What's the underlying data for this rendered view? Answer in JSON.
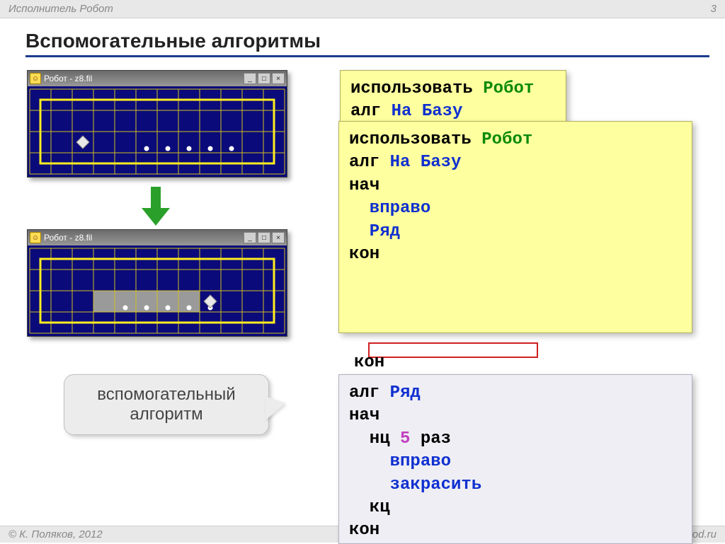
{
  "page_number": "3",
  "breadcrumb": "Исполнитель Робот",
  "slide_title": "Вспомогательные алгоритмы",
  "footer_left": "© К. Поляков, 2012",
  "footer_right": "http://kpolyakov.narod.ru",
  "robot_window": {
    "title": "Робот - z8.fil",
    "grid": {
      "cols": 12,
      "rows": 4,
      "cell": 30,
      "bg": "#0a0a7a",
      "line": "#d0c020",
      "border_line": "#ffee20"
    },
    "state_before": {
      "robot": {
        "col": 2,
        "row": 2
      },
      "painted": [],
      "dots": [
        {
          "c": 5,
          "r": 2
        },
        {
          "c": 6,
          "r": 2
        },
        {
          "c": 7,
          "r": 2
        },
        {
          "c": 8,
          "r": 2
        },
        {
          "c": 9,
          "r": 2
        }
      ]
    },
    "state_after": {
      "robot": {
        "col": 8,
        "row": 2
      },
      "painted": [
        {
          "c": 3,
          "r": 2
        },
        {
          "c": 4,
          "r": 2
        },
        {
          "c": 5,
          "r": 2
        },
        {
          "c": 6,
          "r": 2
        },
        {
          "c": 7,
          "r": 2
        }
      ],
      "dots": [
        {
          "c": 4,
          "r": 2
        },
        {
          "c": 5,
          "r": 2
        },
        {
          "c": 6,
          "r": 2
        },
        {
          "c": 7,
          "r": 2
        },
        {
          "c": 8,
          "r": 2
        }
      ]
    }
  },
  "arrow_color": "#2aa02a",
  "code_box1": {
    "lines": [
      [
        {
          "t": "использовать ",
          "c": "black"
        },
        {
          "t": "Робот",
          "c": "green"
        }
      ],
      [
        {
          "t": "алг ",
          "c": "black"
        },
        {
          "t": "На Базу",
          "c": "blue"
        }
      ]
    ]
  },
  "code_box2": {
    "lines": [
      [
        {
          "t": "использовать ",
          "c": "black"
        },
        {
          "t": "Робот",
          "c": "green"
        }
      ],
      [
        {
          "t": "алг ",
          "c": "black"
        },
        {
          "t": "На Базу",
          "c": "blue"
        }
      ],
      [
        {
          "t": "нач",
          "c": "black"
        }
      ],
      [
        {
          "t": "  вправо",
          "c": "blue"
        }
      ],
      [
        {
          "t": "  Ряд",
          "c": "blue"
        }
      ],
      [
        {
          "t": "кон",
          "c": "black"
        }
      ]
    ]
  },
  "kon_behind": "кон",
  "code_box3": {
    "lines": [
      [
        {
          "t": "алг ",
          "c": "black"
        },
        {
          "t": "Ряд",
          "c": "blue"
        }
      ],
      [
        {
          "t": "нач",
          "c": "black"
        }
      ],
      [
        {
          "t": "  нц ",
          "c": "black"
        },
        {
          "t": "5",
          "c": "num"
        },
        {
          "t": " раз",
          "c": "black"
        }
      ],
      [
        {
          "t": "    вправо",
          "c": "blue"
        }
      ],
      [
        {
          "t": "    закрасить",
          "c": "blue"
        }
      ],
      [
        {
          "t": "  кц",
          "c": "black"
        }
      ],
      [
        {
          "t": "кон",
          "c": "black"
        }
      ]
    ]
  },
  "callout_text": "вспомогательный алгоритм",
  "win_buttons": {
    "min": "_",
    "max": "□",
    "close": "×"
  }
}
